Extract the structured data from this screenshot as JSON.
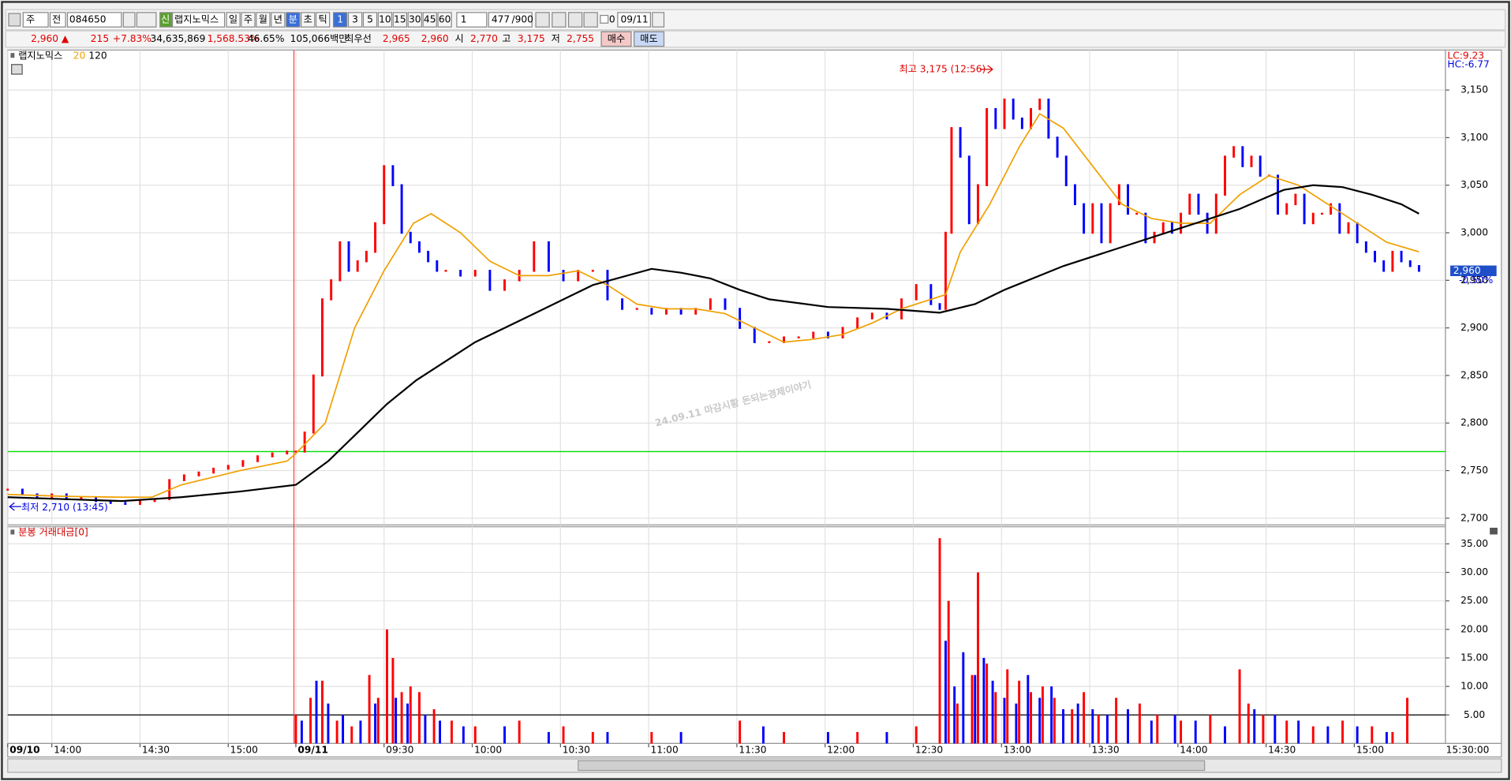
{
  "toolbar": {
    "market": "주",
    "mode": "전",
    "code": "084650",
    "new_badge": "신",
    "name": "랩지노믹스",
    "periods": [
      "일",
      "주",
      "월",
      "년",
      "분",
      "초",
      "틱"
    ],
    "intervals": [
      "1",
      "3",
      "5",
      "10",
      "15",
      "30",
      "45",
      "60"
    ],
    "interval_input": "1",
    "count": "477",
    "max": "/900",
    "zero": "0",
    "date": "09/11"
  },
  "quote": {
    "price": "2,960 ▲",
    "change": "215",
    "change_pct": "+7.83%",
    "volume": "34,635,869",
    "volume_ratio": "1,568.53%",
    "turnover": "46.65%",
    "amount": "105,066백만",
    "best": "최우선",
    "ask": "2,965",
    "bid": "2,960",
    "open_label": "시",
    "open": "2,770",
    "high_label": "고",
    "high": "3,175",
    "low_label": "저",
    "low": "2,755",
    "buy": "매수",
    "sell": "매도"
  },
  "time_label": "15:30:00",
  "chart_data": [
    {
      "type": "candlestick",
      "up_color": "#ff0000",
      "down_color": "#0000ff",
      "series": [
        {
          "name": "랩지노믹스",
          "color": "#000000",
          "x": [
            1,
            6,
            11,
            16,
            21,
            26,
            31,
            36,
            41,
            46,
            51,
            56,
            61,
            66,
            71,
            76,
            81,
            86,
            91,
            96,
            99,
            102,
            105,
            108,
            111,
            114,
            117,
            120,
            123,
            126,
            129,
            132,
            135,
            138,
            141,
            144,
            147,
            150,
            155,
            160,
            165,
            170,
            175,
            180,
            185,
            190,
            195,
            200,
            205,
            210,
            215,
            220,
            225,
            230,
            235,
            240,
            245,
            250,
            255,
            260,
            265,
            270,
            275,
            280,
            285,
            290,
            295,
            300,
            305,
            310,
            315,
            318,
            320,
            322,
            325,
            328,
            331,
            334,
            337,
            340,
            343,
            346,
            349,
            352,
            355,
            358,
            361,
            364,
            367,
            370,
            373,
            376,
            379,
            382,
            385,
            388,
            391,
            394,
            397,
            400,
            403,
            406,
            409,
            412,
            415,
            418,
            421,
            424,
            427,
            430,
            433,
            436,
            439,
            442,
            445,
            448,
            451,
            454,
            457,
            460,
            463,
            466,
            469,
            472,
            475,
            478,
            481
          ],
          "values": [
            2730,
            2725,
            2722,
            2725,
            2720,
            2722,
            2718,
            2716,
            2715,
            2718,
            2720,
            2740,
            2745,
            2748,
            2752,
            2755,
            2760,
            2765,
            2768,
            2770,
            2770,
            2790,
            2850,
            2930,
            2950,
            2990,
            2960,
            2970,
            2980,
            3010,
            3070,
            3050,
            3000,
            2990,
            2980,
            2970,
            2960,
            2960,
            2955,
            2960,
            2940,
            2950,
            2960,
            2990,
            2960,
            2950,
            2960,
            2960,
            2930,
            2920,
            2920,
            2915,
            2920,
            2915,
            2920,
            2930,
            2920,
            2900,
            2885,
            2885,
            2890,
            2890,
            2895,
            2890,
            2900,
            2910,
            2915,
            2910,
            2930,
            2945,
            2925,
            2920,
            3000,
            3110,
            3080,
            3010,
            3050,
            3130,
            3110,
            3140,
            3120,
            3110,
            3130,
            3140,
            3100,
            3080,
            3050,
            3030,
            3000,
            3030,
            2990,
            3030,
            3050,
            3020,
            3020,
            2990,
            3000,
            3010,
            3000,
            3020,
            3040,
            3020,
            3000,
            3040,
            3080,
            3090,
            3070,
            3080,
            3060,
            3060,
            3020,
            3030,
            3040,
            3010,
            3020,
            3020,
            3030,
            3000,
            3010,
            2990,
            2980,
            2970,
            2960,
            2980,
            2970,
            2965,
            2960
          ]
        },
        {
          "name": "20",
          "color": "#f0a000",
          "x": [
            1,
            20,
            40,
            50,
            60,
            80,
            96,
            99,
            109,
            119,
            129,
            139,
            145,
            155,
            165,
            175,
            185,
            195,
            205,
            215,
            225,
            235,
            245,
            255,
            265,
            275,
            285,
            295,
            305,
            315,
            320,
            325,
            335,
            345,
            352,
            360,
            370,
            380,
            390,
            400,
            410,
            420,
            430,
            440,
            450,
            460,
            470,
            481
          ],
          "values": [
            2725,
            2723,
            2722,
            2722,
            2735,
            2750,
            2760,
            2768,
            2800,
            2900,
            2960,
            3010,
            3020,
            3000,
            2970,
            2955,
            2955,
            2960,
            2945,
            2925,
            2920,
            2920,
            2915,
            2900,
            2885,
            2888,
            2893,
            2905,
            2920,
            2930,
            2935,
            2980,
            3030,
            3090,
            3125,
            3110,
            3070,
            3030,
            3015,
            3010,
            3010,
            3040,
            3060,
            3050,
            3030,
            3010,
            2990,
            2980
          ]
        },
        {
          "name": "120",
          "color": "#000000",
          "x": [
            1,
            20,
            40,
            60,
            80,
            99,
            110,
            120,
            130,
            140,
            160,
            180,
            200,
            220,
            230,
            240,
            250,
            260,
            280,
            300,
            318,
            330,
            340,
            360,
            380,
            400,
            420,
            435,
            445,
            455,
            465,
            475,
            481
          ],
          "values": [
            2722,
            2720,
            2718,
            2722,
            2728,
            2735,
            2760,
            2790,
            2820,
            2845,
            2885,
            2915,
            2945,
            2962,
            2958,
            2952,
            2940,
            2930,
            2922,
            2920,
            2916,
            2925,
            2940,
            2965,
            2985,
            3005,
            3025,
            3045,
            3050,
            3048,
            3040,
            3030,
            3020
          ]
        }
      ],
      "xlim": [
        1,
        490
      ],
      "xticks": [
        {
          "value": 1,
          "label": "09/10"
        },
        {
          "value": 16,
          "label": "14:00"
        },
        {
          "value": 46,
          "label": "14:30"
        },
        {
          "value": 76,
          "label": "15:00"
        },
        {
          "value": 99,
          "label": "09/11"
        },
        {
          "value": 129,
          "label": "09:30"
        },
        {
          "value": 159,
          "label": "10:00"
        },
        {
          "value": 189,
          "label": "10:30"
        },
        {
          "value": 219,
          "label": "11:00"
        },
        {
          "value": 249,
          "label": "11:30"
        },
        {
          "value": 279,
          "label": "12:00"
        },
        {
          "value": 309,
          "label": "12:30"
        },
        {
          "value": 339,
          "label": "13:00"
        },
        {
          "value": 369,
          "label": "13:30"
        },
        {
          "value": 399,
          "label": "14:00"
        },
        {
          "value": 429,
          "label": "14:30"
        },
        {
          "value": 459,
          "label": "15:00"
        }
      ],
      "ylim": [
        2693,
        3192
      ],
      "yticks": [
        {
          "value": 2700,
          "label": "2,700"
        },
        {
          "value": 2750,
          "label": "2,750"
        },
        {
          "value": 2800,
          "label": "2,800"
        },
        {
          "value": 2850,
          "label": "2,850"
        },
        {
          "value": 2900,
          "label": "2,900"
        },
        {
          "value": 2950,
          "label": "2,950"
        },
        {
          "value": 3000,
          "label": "3,000"
        },
        {
          "value": 3050,
          "label": "3,050"
        },
        {
          "value": 3100,
          "label": "3,100"
        },
        {
          "value": 3150,
          "label": "3,150"
        }
      ],
      "grid": true,
      "ref_line": 2770,
      "ref_color": "#00dd00",
      "day_line": 99,
      "high_note": "최고 3,175 (12:56)",
      "low_note": "최저 2,710 (13:45)",
      "last_label": "2,960",
      "last_pct": "-0.50%",
      "lc": "LC:9.23",
      "hc": "HC:-6.77",
      "watermark": "24.09.11 마감시황 돈되는경제이야기"
    },
    {
      "type": "bar",
      "title": "분봉 거래대금[0]",
      "series": [
        {
          "name": "up",
          "color": "#ff0000",
          "x": [
            99,
            104,
            108,
            113,
            118,
            124,
            127,
            130,
            132,
            135,
            138,
            141,
            146,
            152,
            160,
            175,
            190,
            200,
            220,
            250,
            265,
            290,
            310,
            318,
            321,
            324,
            329,
            331,
            334,
            337,
            341,
            345,
            349,
            353,
            357,
            363,
            367,
            372,
            378,
            386,
            392,
            400,
            410,
            420,
            423,
            428,
            436,
            445,
            455,
            465,
            472,
            477
          ],
          "values": [
            5,
            8,
            11,
            4,
            3,
            12,
            8,
            20,
            15,
            9,
            10,
            9,
            6,
            4,
            3,
            4,
            3,
            2,
            2,
            4,
            2,
            2,
            3,
            36,
            25,
            7,
            12,
            30,
            14,
            9,
            13,
            11,
            9,
            10,
            8,
            6,
            9,
            5,
            8,
            7,
            5,
            4,
            5,
            13,
            7,
            5,
            4,
            3,
            4,
            3,
            2,
            8
          ]
        },
        {
          "name": "down",
          "color": "#0000ff",
          "x": [
            101,
            106,
            110,
            115,
            121,
            126,
            133,
            137,
            143,
            148,
            156,
            170,
            185,
            205,
            230,
            258,
            280,
            300,
            320,
            323,
            326,
            330,
            333,
            336,
            340,
            344,
            348,
            352,
            356,
            360,
            365,
            370,
            375,
            382,
            390,
            398,
            405,
            415,
            425,
            432,
            440,
            450,
            460,
            470
          ],
          "values": [
            4,
            11,
            7,
            5,
            4,
            7,
            8,
            7,
            5,
            4,
            3,
            3,
            2,
            2,
            2,
            3,
            2,
            2,
            18,
            10,
            16,
            12,
            15,
            11,
            8,
            7,
            12,
            8,
            10,
            6,
            7,
            6,
            5,
            6,
            4,
            5,
            4,
            3,
            6,
            5,
            4,
            3,
            3,
            2
          ]
        }
      ],
      "ylim": [
        0,
        38
      ],
      "yticks": [
        {
          "value": 5,
          "label": "5.00"
        },
        {
          "value": 10,
          "label": "10.00"
        },
        {
          "value": 15,
          "label": "15.00"
        },
        {
          "value": 20,
          "label": "20.00"
        },
        {
          "value": 25,
          "label": "25.00"
        },
        {
          "value": 30,
          "label": "30.00"
        },
        {
          "value": 35,
          "label": "35.00"
        }
      ],
      "grid": true,
      "ref_line": 5,
      "ref_color": "#000000"
    }
  ]
}
